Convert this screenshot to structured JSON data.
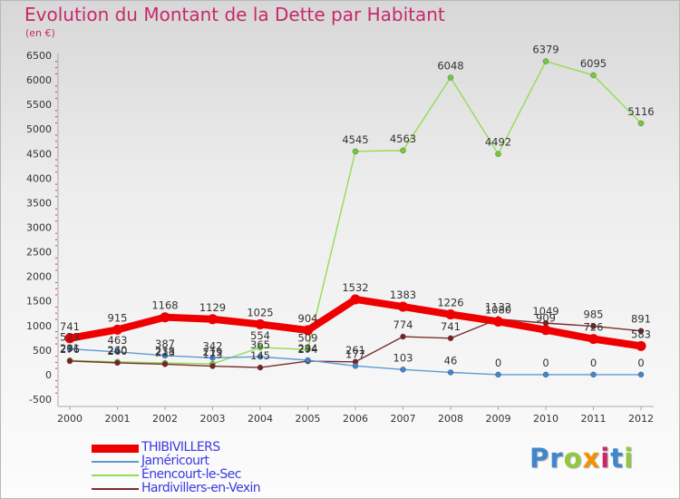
{
  "chart_data": {
    "type": "line",
    "title": "Evolution du Montant de la Dette par Habitant",
    "unit_label": "(en €)",
    "categories": [
      "2000",
      "2001",
      "2002",
      "2003",
      "2004",
      "2005",
      "2006",
      "2007",
      "2008",
      "2009",
      "2010",
      "2011",
      "2012"
    ],
    "y_ticks": [
      "-500",
      "0",
      "500",
      "1000",
      "1500",
      "2000",
      "2500",
      "3000",
      "3500",
      "4000",
      "4500",
      "5000",
      "5500",
      "6000",
      "6500"
    ],
    "ylim": [
      -500,
      6500
    ],
    "grid": false,
    "legend_position": "bottom-left",
    "series": [
      {
        "name": "THIBIVILLERS",
        "color": "#ee0000",
        "marker_color": "#ee0000",
        "values": [
          741,
          915,
          1168,
          1129,
          1025,
          904,
          1532,
          1383,
          1226,
          1080,
          909,
          726,
          583
        ],
        "labels": [
          "741",
          "915",
          "1168",
          "1129",
          "1025",
          "904",
          "1532",
          "1383",
          "1226",
          "1080",
          "909",
          "726",
          "583"
        ]
      },
      {
        "name": "Jaméricourt",
        "color": "#5d9ad4",
        "marker_color": "#3f86d0",
        "values": [
          523,
          463,
          387,
          342,
          365,
          294,
          177,
          103,
          46,
          0,
          0,
          0,
          0
        ],
        "labels": [
          "523",
          "463",
          "387",
          "342",
          "365",
          "294",
          "177",
          "103",
          "46",
          "0",
          "0",
          "0",
          "0"
        ]
      },
      {
        "name": "Énencourt-le-Sec",
        "color": "#92dd54",
        "marker_color": "#72cc3a",
        "values": [
          291,
          260,
          238,
          219,
          554,
          509,
          4545,
          4563,
          6048,
          4492,
          6379,
          6095,
          5116
        ],
        "labels": [
          "291",
          "260",
          "238",
          "219",
          "554",
          "509",
          "4545",
          "4563",
          "6048",
          "4492",
          "6379",
          "6095",
          "5116"
        ]
      },
      {
        "name": "Hardivillers-en-Vexin",
        "color": "#7a2e2e",
        "marker_color": "#7a2222",
        "values": [
          276,
          240,
          213,
          173,
          145,
          274,
          261,
          774,
          741,
          1132,
          1049,
          985,
          891
        ],
        "labels": [
          "276",
          "240",
          "213",
          "173",
          "145",
          "274",
          "261",
          "774",
          "741",
          "1132",
          "1049",
          "985",
          "891"
        ]
      }
    ]
  },
  "brand": {
    "letters": [
      "P",
      "r",
      "o",
      "x",
      "i",
      "t",
      "i"
    ],
    "colors": [
      "#3f86d0",
      "#3f86d0",
      "#92c83e",
      "#f39200",
      "#c8286a",
      "#3f86d0",
      "#92c83e"
    ]
  }
}
